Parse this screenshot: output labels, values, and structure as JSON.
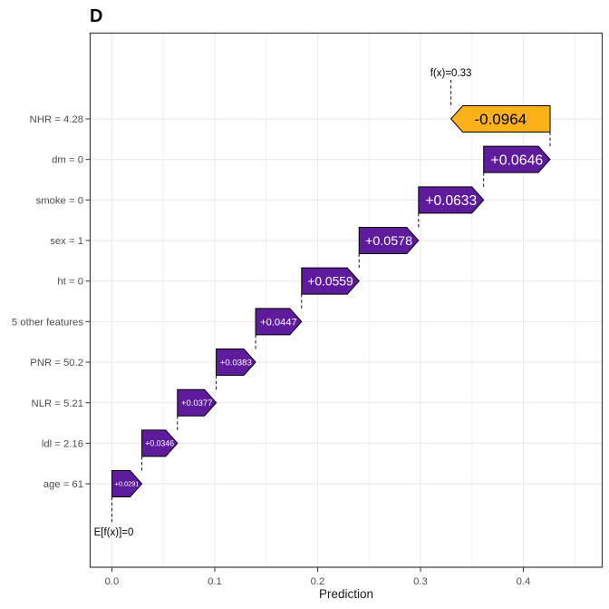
{
  "figure": {
    "panel_label": "D"
  },
  "chart_data": {
    "type": "waterfall",
    "title": "",
    "xlabel": "Prediction",
    "ylabel": "",
    "xlim": [
      -0.0212,
      0.4766
    ],
    "grid": true,
    "x_ticks": [
      0.0,
      0.1,
      0.2,
      0.3,
      0.4
    ],
    "x_tick_labels": [
      "0.0",
      "0.1",
      "0.2",
      "0.3",
      "0.4"
    ],
    "x_minor_ticks": [
      0.05,
      0.15,
      0.25,
      0.35,
      0.45
    ],
    "baseline": {
      "label": "E[f(x)]=0",
      "value": 0
    },
    "final": {
      "label": "f(x)=0.33",
      "value": 0.3296
    },
    "features": [
      {
        "label": "NHR = 4.28",
        "shap": -0.0964,
        "value_label": "-0.0964"
      },
      {
        "label": "dm = 0",
        "shap": 0.0646,
        "value_label": "+0.0646"
      },
      {
        "label": "smoke = 0",
        "shap": 0.0633,
        "value_label": "+0.0633"
      },
      {
        "label": "sex = 1",
        "shap": 0.0578,
        "value_label": "+0.0578"
      },
      {
        "label": "ht = 0",
        "shap": 0.0559,
        "value_label": "+0.0559"
      },
      {
        "label": "5 other features",
        "shap": 0.0447,
        "value_label": "+0.0447"
      },
      {
        "label": "PNR = 50.2",
        "shap": 0.0383,
        "value_label": "+0.0383"
      },
      {
        "label": "NLR = 5.21",
        "shap": 0.0377,
        "value_label": "+0.0377"
      },
      {
        "label": "ldl = 2.16",
        "shap": 0.0346,
        "value_label": "+0.0346"
      },
      {
        "label": "age = 61",
        "shap": 0.0291,
        "value_label": "+0.0291"
      }
    ],
    "colors": {
      "positive": "#5E1C9C",
      "negative": "#FBB117",
      "positive_text": "#FFFFFF",
      "negative_text": "#000000",
      "bar_border": "#000000",
      "grid": "#EBEBEB",
      "minor_grid": "#F1F1F1",
      "panel_border": "#3B3B3B",
      "axis_text": "#4D4D4D",
      "connector": "#111111"
    }
  }
}
